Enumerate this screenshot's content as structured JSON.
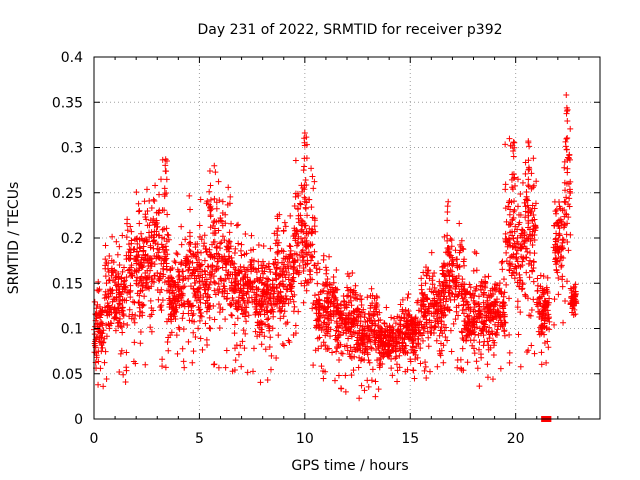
{
  "chart_data": {
    "type": "scatter",
    "title": "Day 231 of 2022, SRMTID for receiver p392",
    "xlabel": "GPS time / hours",
    "ylabel": "SRMTID / TECUs",
    "xlim": [
      0,
      24
    ],
    "ylim": [
      0,
      0.4
    ],
    "grid": true,
    "x_ticks": [
      0,
      5,
      10,
      15,
      20
    ],
    "y_ticks": [
      0,
      0.05,
      0.1,
      0.15,
      0.2,
      0.25,
      0.3,
      0.35,
      0.4
    ],
    "x_tick_labels": [
      "0",
      "5",
      "10",
      "15",
      "20"
    ],
    "y_tick_labels": [
      "0",
      "0.05",
      "0.1",
      "0.15",
      "0.2",
      "0.25",
      "0.3",
      "0.35",
      "0.4"
    ],
    "marker": "+",
    "series_color": "#ff0000",
    "envelope_note": "Approximate density envelope of plotted points per hour window: [start_hour, end_hour, min_value, max_value]",
    "envelope": [
      [
        0.0,
        0.5,
        0.03,
        0.16
      ],
      [
        0.5,
        1.5,
        0.04,
        0.21
      ],
      [
        1.5,
        2.5,
        0.05,
        0.26
      ],
      [
        2.5,
        3.5,
        0.05,
        0.29
      ],
      [
        3.5,
        4.5,
        0.05,
        0.22
      ],
      [
        4.5,
        5.5,
        0.03,
        0.25
      ],
      [
        5.5,
        6.5,
        0.05,
        0.28
      ],
      [
        6.5,
        7.5,
        0.05,
        0.22
      ],
      [
        7.5,
        8.5,
        0.04,
        0.21
      ],
      [
        8.5,
        9.5,
        0.06,
        0.23
      ],
      [
        9.5,
        10.5,
        0.05,
        0.32
      ],
      [
        10.5,
        11.5,
        0.04,
        0.19
      ],
      [
        11.5,
        12.5,
        0.03,
        0.17
      ],
      [
        12.5,
        13.5,
        0.02,
        0.16
      ],
      [
        13.5,
        14.5,
        0.03,
        0.13
      ],
      [
        14.5,
        15.5,
        0.04,
        0.14
      ],
      [
        15.5,
        16.5,
        0.04,
        0.19
      ],
      [
        16.5,
        17.5,
        0.05,
        0.24
      ],
      [
        17.5,
        18.5,
        0.03,
        0.19
      ],
      [
        18.5,
        19.5,
        0.04,
        0.18
      ],
      [
        19.5,
        20.5,
        0.05,
        0.31
      ],
      [
        20.5,
        21.0,
        0.07,
        0.31
      ],
      [
        21.0,
        21.6,
        0.06,
        0.17
      ],
      [
        21.8,
        22.3,
        0.09,
        0.28
      ],
      [
        22.3,
        22.6,
        0.12,
        0.36
      ],
      [
        22.6,
        22.9,
        0.11,
        0.15
      ]
    ],
    "peaks": [
      {
        "x": 3.4,
        "y": 0.287
      },
      {
        "x": 5.5,
        "y": 0.274
      },
      {
        "x": 8.7,
        "y": 0.224
      },
      {
        "x": 10.0,
        "y": 0.316
      },
      {
        "x": 16.8,
        "y": 0.24
      },
      {
        "x": 19.9,
        "y": 0.306
      },
      {
        "x": 20.6,
        "y": 0.307
      },
      {
        "x": 22.4,
        "y": 0.358
      }
    ],
    "zero_markers": [
      {
        "x": 21.35,
        "y": 0.0
      },
      {
        "x": 21.45,
        "y": 0.0
      },
      {
        "x": 21.55,
        "y": 0.0
      }
    ]
  }
}
